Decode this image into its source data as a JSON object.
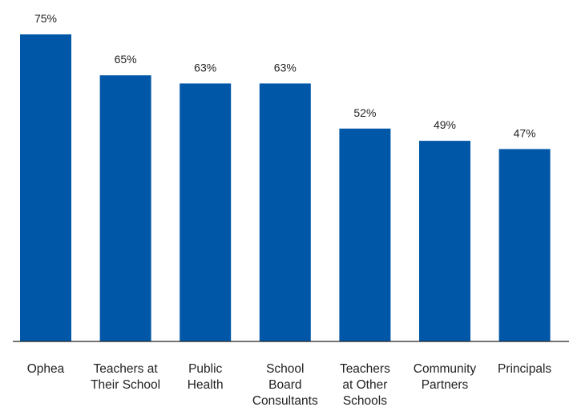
{
  "chart_data": {
    "type": "bar",
    "title": "",
    "xlabel": "",
    "ylabel": "",
    "ylim": [
      0,
      100
    ],
    "value_suffix": "%",
    "bar_color": "#0057a8",
    "categories": [
      [
        "Ophea"
      ],
      [
        "Teachers at",
        "Their School"
      ],
      [
        "Public",
        "Health"
      ],
      [
        "School",
        "Board",
        "Consultants"
      ],
      [
        "Teachers",
        "at Other",
        "Schools"
      ],
      [
        "Community",
        "Partners"
      ],
      [
        "Principals"
      ]
    ],
    "values": [
      75,
      65,
      63,
      63,
      52,
      49,
      47
    ],
    "value_labels": [
      "75%",
      "65%",
      "63%",
      "63%",
      "52%",
      "49%",
      "47%"
    ]
  }
}
